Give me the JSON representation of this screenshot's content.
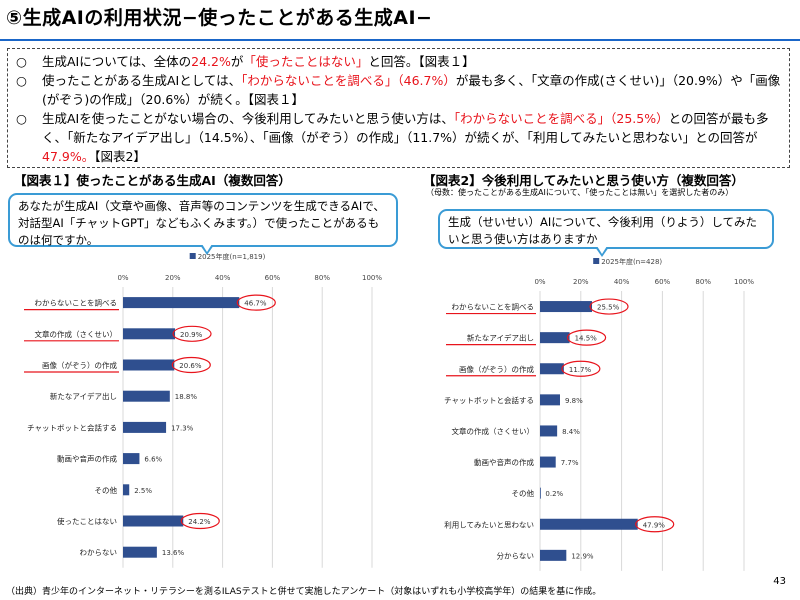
{
  "page": {
    "title": "⑤生成AIの利用状況−使ったことがある生成AI−",
    "page_number": "43",
    "source_note": "（出典）青少年のインターネット・リテラシーを測るILASテストと併せて実施したアンケート（対象はいずれも小学校高学年）の結果を基に作成。"
  },
  "summary": {
    "bullet_mark": "○",
    "bullets": [
      [
        {
          "t": "生成AIについては、全体の"
        },
        {
          "t": "24.2%",
          "red": true
        },
        {
          "t": "が"
        },
        {
          "t": "「使ったことはない」",
          "red": true
        },
        {
          "t": "と回答。【図表１】"
        }
      ],
      [
        {
          "t": "使ったことがある生成AIとしては、"
        },
        {
          "t": "「わからないことを調べる」（46.7%）",
          "red": true
        },
        {
          "t": "が最も多く、「文章の作成(さくせい)」（20.9%）や「画像(がぞう)の作成」（20.6%）が続く。【図表１】"
        }
      ],
      [
        {
          "t": "生成AIを使ったことがない場合の、今後利用してみたいと思う使い方は、"
        },
        {
          "t": "「わからないことを調べる」（25.5%）",
          "red": true
        },
        {
          "t": "との回答が最も多く、「新たなアイデア出し」（14.5%）、「画像（がぞう）の作成」（11.7%）が続くが、「利用してみたいと思わない」との回答が"
        },
        {
          "t": "47.9%。",
          "red": true
        },
        {
          "t": "【図表2】"
        }
      ]
    ]
  },
  "figure1": {
    "title": "【図表１】使ったことがある生成AI（複数回答）",
    "question": "あなたが生成AI（文章や画像、音声等のコンテンツを生成できるAIで、対話型AI「チャットGPT」などもふくみます。）で使ったことがあるものは何ですか。"
  },
  "figure2": {
    "title": "【図表2】今後利用してみたいと思う使い方（複数回答）",
    "note": "（母数：使ったことがある生成AIについて、「使ったことは無い」を選択した者のみ）",
    "question": "生成（せいせい）AIについて、今後利用（りよう）してみたいと思う使い方はありますか"
  },
  "colors": {
    "bar": "#2f4f8f",
    "highlight": "#e8141c",
    "accent": "#1a66c8",
    "bubble_border": "#3a9bd5"
  },
  "chart_data": [
    {
      "type": "bar",
      "orientation": "horizontal",
      "series": [
        {
          "name": "2025年度(n=1,819)",
          "values": [
            46.7,
            20.9,
            20.6,
            18.8,
            17.3,
            6.6,
            2.5,
            24.2,
            13.6
          ]
        }
      ],
      "categories": [
        "わからないことを調べる",
        "文章の作成（さくせい）",
        "画像（がぞう）の作成",
        "新たなアイデア出し",
        "チャットボットと会話する",
        "動画や音声の作成",
        "その他",
        "使ったことはない",
        "わからない"
      ],
      "value_labels": [
        "46.7%",
        "20.9%",
        "20.6%",
        "18.8%",
        "17.3%",
        "6.6%",
        "2.5%",
        "24.2%",
        "13.6%"
      ],
      "xlim": [
        0,
        100
      ],
      "xticks": [
        "0%",
        "20%",
        "40%",
        "60%",
        "80%",
        "100%"
      ],
      "highlighted_values": [
        0,
        1,
        2,
        7
      ],
      "underlined_categories": [
        0,
        1,
        2
      ]
    },
    {
      "type": "bar",
      "orientation": "horizontal",
      "series": [
        {
          "name": "2025年度(n=428)",
          "values": [
            25.5,
            14.5,
            11.7,
            9.8,
            8.4,
            7.7,
            0.2,
            47.9,
            12.9
          ]
        }
      ],
      "categories": [
        "わからないことを調べる",
        "新たなアイデア出し",
        "画像（がぞう）の作成",
        "チャットボットと会話する",
        "文章の作成（さくせい）",
        "動画や音声の作成",
        "その他",
        "利用してみたいと思わない",
        "分からない"
      ],
      "value_labels": [
        "25.5%",
        "14.5%",
        "11.7%",
        "9.8%",
        "8.4%",
        "7.7%",
        "0.2%",
        "47.9%",
        "12.9%"
      ],
      "xlim": [
        0,
        100
      ],
      "xticks": [
        "0%",
        "20%",
        "40%",
        "60%",
        "80%",
        "100%"
      ],
      "highlighted_values": [
        0,
        1,
        2,
        7
      ],
      "underlined_categories": [
        0,
        1,
        2
      ]
    }
  ]
}
